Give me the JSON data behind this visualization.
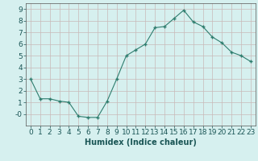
{
  "x": [
    0,
    1,
    2,
    3,
    4,
    5,
    6,
    7,
    8,
    9,
    10,
    11,
    12,
    13,
    14,
    15,
    16,
    17,
    18,
    19,
    20,
    21,
    22,
    23
  ],
  "y": [
    3.0,
    1.3,
    1.3,
    1.1,
    1.0,
    -0.2,
    -0.3,
    -0.3,
    1.1,
    3.0,
    5.0,
    5.5,
    6.0,
    7.4,
    7.5,
    8.2,
    8.9,
    7.9,
    7.5,
    6.6,
    6.1,
    5.3,
    5.0,
    4.5
  ],
  "line_color": "#2e7d6e",
  "marker": "+",
  "marker_size": 3,
  "marker_linewidth": 1.0,
  "background_color": "#d6f0ef",
  "grid_color": "#c8b8b8",
  "xlabel": "Humidex (Indice chaleur)",
  "xlim": [
    -0.5,
    23.5
  ],
  "ylim": [
    -1.0,
    9.5
  ],
  "yticks": [
    0,
    1,
    2,
    3,
    4,
    5,
    6,
    7,
    8,
    9
  ],
  "ytick_labels": [
    "-0",
    "1",
    "2",
    "3",
    "4",
    "5",
    "6",
    "7",
    "8",
    "9"
  ],
  "xticks": [
    0,
    1,
    2,
    3,
    4,
    5,
    6,
    7,
    8,
    9,
    10,
    11,
    12,
    13,
    14,
    15,
    16,
    17,
    18,
    19,
    20,
    21,
    22,
    23
  ],
  "xlabel_fontsize": 7,
  "tick_fontsize": 6.5,
  "linewidth": 0.8
}
